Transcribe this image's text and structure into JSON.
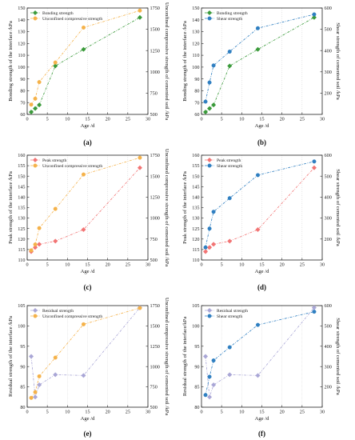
{
  "chart_data": [
    {
      "panel_label": "(a)",
      "type": "line",
      "xlabel": "Age /d",
      "ylabel_left": "Bonding strength of the interface /kPa",
      "ylabel_right": "Unconfined compressive strength of cemented soil /kPa",
      "xlim": [
        0,
        30
      ],
      "xticks": [
        0,
        5,
        10,
        15,
        20,
        25,
        30
      ],
      "ylim_left": [
        60,
        150
      ],
      "yticks_left": [
        60,
        70,
        80,
        90,
        100,
        110,
        120,
        130,
        140,
        150
      ],
      "ylim_right": [
        500,
        1750
      ],
      "yticks_right": [
        500,
        750,
        1000,
        1250,
        1500,
        1750
      ],
      "legend_position": "top-left",
      "grid": "vertical",
      "series": [
        {
          "name": "Bonding strength",
          "axis": "left",
          "color": "#3a9a3a",
          "marker": "diamond",
          "x": [
            1,
            2,
            3,
            7,
            14,
            28
          ],
          "y": [
            62,
            65,
            68,
            101,
            115,
            142
          ]
        },
        {
          "name": "Unconfined compressive strength",
          "axis": "right",
          "color": "#f5b24a",
          "marker": "circle",
          "x": [
            1,
            2,
            3,
            7,
            14,
            28
          ],
          "y": [
            615,
            685,
            880,
            1110,
            1520,
            1720
          ]
        }
      ]
    },
    {
      "panel_label": "(b)",
      "type": "line",
      "xlabel": "Age /d",
      "ylabel_left": "Bonding strength of the interface /kPa",
      "ylabel_right": "Shear strength of cemented soil /kPa",
      "xlim": [
        0,
        30
      ],
      "xticks": [
        0,
        5,
        10,
        15,
        20,
        25,
        30
      ],
      "ylim_left": [
        60,
        150
      ],
      "yticks_left": [
        60,
        70,
        80,
        90,
        100,
        110,
        120,
        130,
        140,
        150
      ],
      "ylim_right": [
        100,
        600
      ],
      "yticks_right": [
        200,
        300,
        400,
        500,
        600
      ],
      "legend_position": "top-left",
      "grid": "vertical",
      "series": [
        {
          "name": "Bonding strength",
          "axis": "left",
          "color": "#3a9a3a",
          "marker": "diamond",
          "x": [
            1,
            2,
            3,
            7,
            14,
            28
          ],
          "y": [
            62,
            65,
            68,
            101,
            115,
            142
          ]
        },
        {
          "name": "Shear strength",
          "axis": "right",
          "color": "#2f7fc1",
          "marker": "circle",
          "x": [
            1,
            2,
            3,
            7,
            14,
            28
          ],
          "y": [
            160,
            250,
            330,
            395,
            505,
            570
          ]
        }
      ]
    },
    {
      "panel_label": "(c)",
      "type": "line",
      "xlabel": "Age /d",
      "ylabel_left": "Peak strength of the interface /kPa",
      "ylabel_right": "Unconfined compressive strength of cemented soil /kPa",
      "xlim": [
        0,
        30
      ],
      "xticks": [
        0,
        5,
        10,
        15,
        20,
        25,
        30
      ],
      "ylim_left": [
        110,
        160
      ],
      "yticks_left": [
        110,
        115,
        120,
        125,
        130,
        135,
        140,
        145,
        150,
        155,
        160
      ],
      "ylim_right": [
        500,
        1750
      ],
      "yticks_right": [
        500,
        750,
        1000,
        1250,
        1500,
        1750
      ],
      "legend_position": "top-left",
      "grid": "vertical",
      "series": [
        {
          "name": "Peak strength",
          "axis": "left",
          "color": "#f27474",
          "marker": "diamond",
          "x": [
            1,
            2,
            3,
            7,
            14,
            28
          ],
          "y": [
            114,
            116,
            117.5,
            119,
            124.5,
            154
          ]
        },
        {
          "name": "Unconfined compressive strength",
          "axis": "right",
          "color": "#f5b24a",
          "marker": "circle",
          "x": [
            1,
            2,
            3,
            7,
            14,
            28
          ],
          "y": [
            615,
            685,
            880,
            1110,
            1520,
            1720
          ]
        }
      ]
    },
    {
      "panel_label": "(d)",
      "type": "line",
      "xlabel": "Age /d",
      "ylabel_left": "Peak strength of the interface /kPa",
      "ylabel_right": "Shear strength of cemented soil /kPa",
      "xlim": [
        0,
        30
      ],
      "xticks": [
        0,
        5,
        10,
        15,
        20,
        25,
        30
      ],
      "ylim_left": [
        110,
        160
      ],
      "yticks_left": [
        110,
        115,
        120,
        125,
        130,
        135,
        140,
        145,
        150,
        155,
        160
      ],
      "ylim_right": [
        100,
        600
      ],
      "yticks_right": [
        200,
        300,
        400,
        500,
        600
      ],
      "legend_position": "top-left",
      "grid": "vertical",
      "series": [
        {
          "name": "Peak strength",
          "axis": "left",
          "color": "#f27474",
          "marker": "diamond",
          "x": [
            1,
            2,
            3,
            7,
            14,
            28
          ],
          "y": [
            114,
            116,
            117.5,
            119,
            124.5,
            154
          ]
        },
        {
          "name": "Shear strength",
          "axis": "right",
          "color": "#2f7fc1",
          "marker": "circle",
          "x": [
            1,
            2,
            3,
            7,
            14,
            28
          ],
          "y": [
            160,
            250,
            330,
            395,
            505,
            570
          ]
        }
      ]
    },
    {
      "panel_label": "(e)",
      "type": "line",
      "xlabel": "Age /d",
      "ylabel_left": "Residual strength of the interface /kPa",
      "ylabel_right": "Unconfined compressive strength of cemented soil /kPa",
      "xlim": [
        0,
        30
      ],
      "xticks": [
        0,
        5,
        10,
        15,
        20,
        25,
        30
      ],
      "ylim_left": [
        80,
        105
      ],
      "yticks_left": [
        80,
        85,
        90,
        95,
        100,
        105
      ],
      "ylim_right": [
        500,
        1750
      ],
      "yticks_right": [
        500,
        750,
        1000,
        1250,
        1500,
        1750
      ],
      "legend_position": "top-left",
      "grid": "vertical",
      "series": [
        {
          "name": "Residual strength",
          "axis": "left",
          "color": "#a9a6d6",
          "marker": "diamond",
          "x": [
            1,
            2,
            3,
            7,
            14,
            28
          ],
          "y": [
            92.5,
            82.5,
            85.5,
            88,
            87.8,
            104.5
          ]
        },
        {
          "name": "Unconfined compressive strength",
          "axis": "right",
          "color": "#f5b24a",
          "marker": "circle",
          "x": [
            1,
            2,
            3,
            7,
            14,
            28
          ],
          "y": [
            615,
            685,
            880,
            1110,
            1520,
            1720
          ]
        }
      ]
    },
    {
      "panel_label": "(f)",
      "type": "line",
      "xlabel": "Age /d",
      "ylabel_left": "Residual strength of the interface/kPa",
      "ylabel_right": "Shear strength of cemented soil /kPa",
      "xlim": [
        0,
        30
      ],
      "xticks": [
        0,
        5,
        10,
        15,
        20,
        25,
        30
      ],
      "ylim_left": [
        80,
        105
      ],
      "yticks_left": [
        80,
        85,
        90,
        95,
        100,
        105
      ],
      "ylim_right": [
        100,
        600
      ],
      "yticks_right": [
        200,
        300,
        400,
        500,
        600
      ],
      "legend_position": "top-left",
      "grid": "vertical",
      "series": [
        {
          "name": "Residual strength",
          "axis": "left",
          "color": "#a9a6d6",
          "marker": "diamond",
          "x": [
            1,
            2,
            3,
            7,
            14,
            28
          ],
          "y": [
            92.5,
            82.5,
            85.5,
            88,
            87.8,
            104.5
          ]
        },
        {
          "name": "Shear strength",
          "axis": "right",
          "color": "#2f7fc1",
          "marker": "circle",
          "x": [
            1,
            2,
            3,
            7,
            14,
            28
          ],
          "y": [
            160,
            250,
            330,
            395,
            505,
            570
          ]
        }
      ]
    }
  ]
}
